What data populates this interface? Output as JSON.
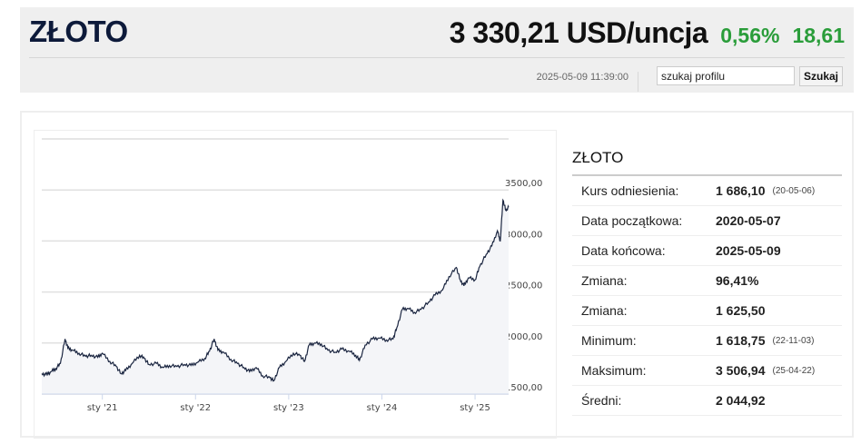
{
  "header": {
    "title": "ZŁOTO",
    "price": "3 330,21 USD/uncja",
    "change_pct": "0,56%",
    "change_abs": "18,61",
    "timestamp": "2025-05-09 11:39:00",
    "search_value": "szukaj profilu",
    "search_button": "Szukaj"
  },
  "colors": {
    "positive": "#2a9d3a",
    "title": "#0d1a3a",
    "line": "#1a2540",
    "fill": "#f4f5f8"
  },
  "stats": {
    "title": "ZŁOTO",
    "rows": [
      {
        "label": "Kurs odniesienia:",
        "value": "1 686,10",
        "date": "(20-05-06)"
      },
      {
        "label": "Data początkowa:",
        "value": "2020-05-07",
        "date": ""
      },
      {
        "label": "Data końcowa:",
        "value": "2025-05-09",
        "date": ""
      },
      {
        "label": "Zmiana:",
        "value": "96,41%",
        "date": ""
      },
      {
        "label": "Zmiana:",
        "value": "1 625,50",
        "date": ""
      },
      {
        "label": "Minimum:",
        "value": "1 618,75",
        "date": "(22-11-03)"
      },
      {
        "label": "Maksimum:",
        "value": "3 506,94",
        "date": "(25-04-22)"
      },
      {
        "label": "Średni:",
        "value": "2 044,92",
        "date": ""
      }
    ]
  },
  "chart_data": {
    "type": "area",
    "title": "",
    "xlabel": "",
    "ylabel": "",
    "xlim": [
      2020.35,
      2025.36
    ],
    "ylim": [
      1500,
      4000
    ],
    "yticks": [
      {
        "v": 1500,
        "label": "1500,00"
      },
      {
        "v": 2000,
        "label": "2000,00"
      },
      {
        "v": 2500,
        "label": "2500,00"
      },
      {
        "v": 3000,
        "label": "3000,00"
      },
      {
        "v": 3500,
        "label": "3500,00"
      }
    ],
    "xticks": [
      {
        "v": 2021.0,
        "label": "sty '21"
      },
      {
        "v": 2022.0,
        "label": "sty '22"
      },
      {
        "v": 2023.0,
        "label": "sty '23"
      },
      {
        "v": 2024.0,
        "label": "sty '24"
      },
      {
        "v": 2025.0,
        "label": "sty '25"
      }
    ],
    "x": [
      2020.35,
      2020.4,
      2020.45,
      2020.5,
      2020.55,
      2020.6,
      2020.63,
      2020.68,
      2020.75,
      2020.82,
      2020.88,
      2020.95,
      2021.0,
      2021.08,
      2021.15,
      2021.2,
      2021.25,
      2021.32,
      2021.4,
      2021.45,
      2021.5,
      2021.58,
      2021.65,
      2021.72,
      2021.8,
      2021.88,
      2021.95,
      2022.02,
      2022.1,
      2022.15,
      2022.2,
      2022.24,
      2022.3,
      2022.38,
      2022.45,
      2022.52,
      2022.58,
      2022.65,
      2022.72,
      2022.8,
      2022.84,
      2022.9,
      2022.97,
      2023.05,
      2023.12,
      2023.17,
      2023.22,
      2023.28,
      2023.35,
      2023.42,
      2023.5,
      2023.57,
      2023.65,
      2023.72,
      2023.76,
      2023.82,
      2023.9,
      2023.97,
      2024.05,
      2024.12,
      2024.16,
      2024.22,
      2024.28,
      2024.35,
      2024.42,
      2024.5,
      2024.57,
      2024.65,
      2024.72,
      2024.8,
      2024.84,
      2024.88,
      2024.93,
      2025.0,
      2025.05,
      2025.12,
      2025.18,
      2025.24,
      2025.27,
      2025.3,
      2025.33,
      2025.36
    ],
    "values": [
      1700,
      1690,
      1720,
      1750,
      1800,
      2040,
      1950,
      1930,
      1900,
      1870,
      1880,
      1860,
      1900,
      1820,
      1770,
      1700,
      1730,
      1800,
      1880,
      1850,
      1790,
      1800,
      1760,
      1780,
      1770,
      1790,
      1780,
      1810,
      1850,
      1920,
      2040,
      1930,
      1910,
      1840,
      1800,
      1760,
      1720,
      1760,
      1680,
      1660,
      1630,
      1760,
      1820,
      1900,
      1880,
      1820,
      1980,
      2000,
      1990,
      1930,
      1910,
      1940,
      1920,
      1880,
      1830,
      1980,
      2040,
      2050,
      2030,
      2040,
      2150,
      2330,
      2340,
      2300,
      2330,
      2400,
      2470,
      2520,
      2650,
      2740,
      2620,
      2560,
      2640,
      2620,
      2750,
      2870,
      2950,
      3100,
      3000,
      3400,
      3300,
      3330
    ]
  }
}
